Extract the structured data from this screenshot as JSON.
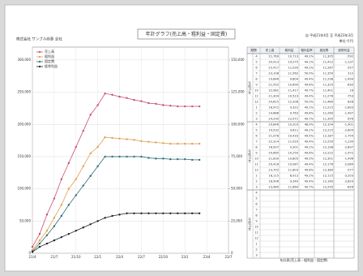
{
  "header": {
    "company": "株式会社 サンプル商事 全社",
    "period": "自 平成21年4月 至 平成23年3月",
    "unit": "単位:千円"
  },
  "chart_data": {
    "type": "line",
    "title": "年計グラフ(売上高・粗利益・固定費)",
    "categories": [
      "21/4",
      null,
      null,
      "21/7",
      null,
      null,
      "21/10",
      null,
      null,
      "22/1",
      null,
      null,
      "22/4",
      null,
      null,
      "22/7",
      null,
      null,
      "22/10",
      null,
      null,
      "23/1",
      null,
      null,
      "23/4",
      null,
      null,
      "23/7"
    ],
    "series": [
      {
        "name": "売上高",
        "color": "#c8506e",
        "values": [
          10000,
          30000,
          60000,
          85000,
          115000,
          140000,
          165000,
          190000,
          215000,
          230000,
          248000,
          246000,
          243000,
          241000,
          238000,
          236000,
          233000,
          232000,
          230000,
          229000,
          228000,
          228000,
          228000,
          228000,
          null,
          null,
          null,
          null
        ]
      },
      {
        "name": "粗利益",
        "color": "#e0a050",
        "values": [
          5000,
          20000,
          35000,
          55000,
          75000,
          100000,
          115000,
          135000,
          155000,
          165000,
          180000,
          179000,
          178000,
          177000,
          176000,
          174000,
          173000,
          172000,
          171000,
          170000,
          170000,
          170000,
          170000,
          170000,
          null,
          null,
          null,
          null
        ]
      },
      {
        "name": "固定費",
        "color": "#2f6f7a",
        "values": [
          3000,
          15000,
          28000,
          42000,
          58000,
          75000,
          90000,
          105000,
          120000,
          135000,
          150000,
          150000,
          150000,
          150000,
          150000,
          150000,
          148000,
          147000,
          147000,
          146000,
          146000,
          146000,
          145000,
          145000,
          null,
          null,
          null,
          null
        ]
      },
      {
        "name": "経常利益",
        "color": "#222222",
        "values": [
          2000,
          10000,
          15000,
          20000,
          25000,
          30000,
          35000,
          40000,
          45000,
          50000,
          55000,
          58000,
          60000,
          62000,
          62000,
          62000,
          62000,
          62000,
          62000,
          62000,
          62000,
          62000,
          62000,
          62000,
          null,
          null,
          null,
          null
        ]
      }
    ],
    "ylim": [
      0,
      320000
    ],
    "yticks": [
      0,
      {
        "value": 50000,
        "label": "50,000"
      },
      {
        "value": 100000,
        "label": "100,000"
      },
      {
        "value": 150000,
        "label": "150,000"
      },
      {
        "value": 200000,
        "label": "200,000"
      },
      {
        "value": 250000,
        "label": "250,000"
      },
      {
        "value": 300000,
        "label": "300,000"
      }
    ],
    "y2lim": [
      0,
      160000
    ],
    "y2ticks": [
      0,
      {
        "value": 25000,
        "label": "25,000"
      },
      {
        "value": 50000,
        "label": "50,000"
      },
      {
        "value": 75000,
        "label": "75,000"
      },
      {
        "value": 100000,
        "label": "100,000"
      },
      {
        "value": 125000,
        "label": "125,000"
      },
      {
        "value": 150000,
        "label": "150,000"
      }
    ],
    "grid": true,
    "legend": "top-left"
  },
  "table": {
    "header": [
      "期間",
      "売上高",
      "粗利益",
      "粗利益率",
      "固定費",
      "経常利益"
    ],
    "groups": [
      {
        "label": "平成21年",
        "rows": [
          [
            "4",
            "21,769",
            "10,713",
            "49.2%",
            "11,305",
            "-592"
          ],
          [
            "5",
            "20,913",
            "10,275",
            "49.1%",
            "11,412",
            "-1,137"
          ],
          [
            "6",
            "22,417",
            "11,030",
            "49.2%",
            "11,287",
            "-257"
          ],
          [
            "7",
            "23,108",
            "11,562",
            "50.0%",
            "11,350",
            "212"
          ],
          [
            "8",
            "19,846",
            "9,804",
            "49.4%",
            "11,298",
            "-1,494"
          ],
          [
            "9",
            "21,552",
            "10,690",
            "49.6%",
            "11,320",
            "-630"
          ],
          [
            "10",
            "22,981",
            "11,417",
            "49.7%",
            "11,401",
            "16"
          ],
          [
            "11",
            "21,304",
            "10,523",
            "49.4%",
            "11,276",
            "-753"
          ],
          [
            "12",
            "24,615",
            "12,308",
            "50.0%",
            "11,480",
            "828"
          ],
          [
            "1",
            "18,972",
            "9,322",
            "49.1%",
            "11,215",
            "-1,893"
          ],
          [
            "2",
            "19,688",
            "9,763",
            "49.6%",
            "11,260",
            "-1,497"
          ],
          [
            "3",
            "24,290",
            "12,071",
            "49.7%",
            "11,395",
            "676"
          ]
        ]
      },
      {
        "label": "平成22年",
        "rows": [
          [
            "4",
            "20,846",
            "10,203",
            "48.9%",
            "12,104",
            "-1,901"
          ],
          [
            "5",
            "19,532",
            "9,611",
            "49.2%",
            "12,215",
            "-2,604"
          ],
          [
            "6",
            "21,078",
            "10,433",
            "49.5%",
            "12,187",
            "-1,754"
          ],
          [
            "7",
            "22,314",
            "11,020",
            "49.4%",
            "12,250",
            "-1,230"
          ],
          [
            "8",
            "18,907",
            "9,301",
            "49.2%",
            "12,198",
            "-2,897"
          ],
          [
            "9",
            "20,665",
            "10,250",
            "49.6%",
            "12,222",
            "-1,972"
          ],
          [
            "10",
            "21,830",
            "10,805",
            "49.5%",
            "12,301",
            "-1,496"
          ],
          [
            "11",
            "20,418",
            "10,087",
            "49.4%",
            "12,176",
            "-2,089"
          ],
          [
            "12",
            "23,702",
            "11,803",
            "49.8%",
            "12,380",
            "-577"
          ],
          [
            "1",
            "18,115",
            "8,912",
            "49.2%",
            "12,115",
            "-3,203"
          ],
          [
            "2",
            "18,906",
            "9,340",
            "49.4%",
            "12,160",
            "-2,820"
          ],
          [
            "3",
            "23,480",
            "11,669",
            "49.7%",
            "12,295",
            "-626"
          ]
        ]
      },
      {
        "label": "平成23年",
        "rows": [
          [
            "4"
          ],
          [
            "5"
          ],
          [
            "6"
          ],
          [
            "7"
          ],
          [
            "8"
          ],
          [
            "9"
          ],
          [
            "10"
          ],
          [
            "11"
          ],
          [
            "12"
          ],
          [
            "1"
          ],
          [
            "2"
          ],
          [
            "3"
          ]
        ]
      }
    ]
  },
  "footer": "年計表(売上高・粗利益・固定費)"
}
